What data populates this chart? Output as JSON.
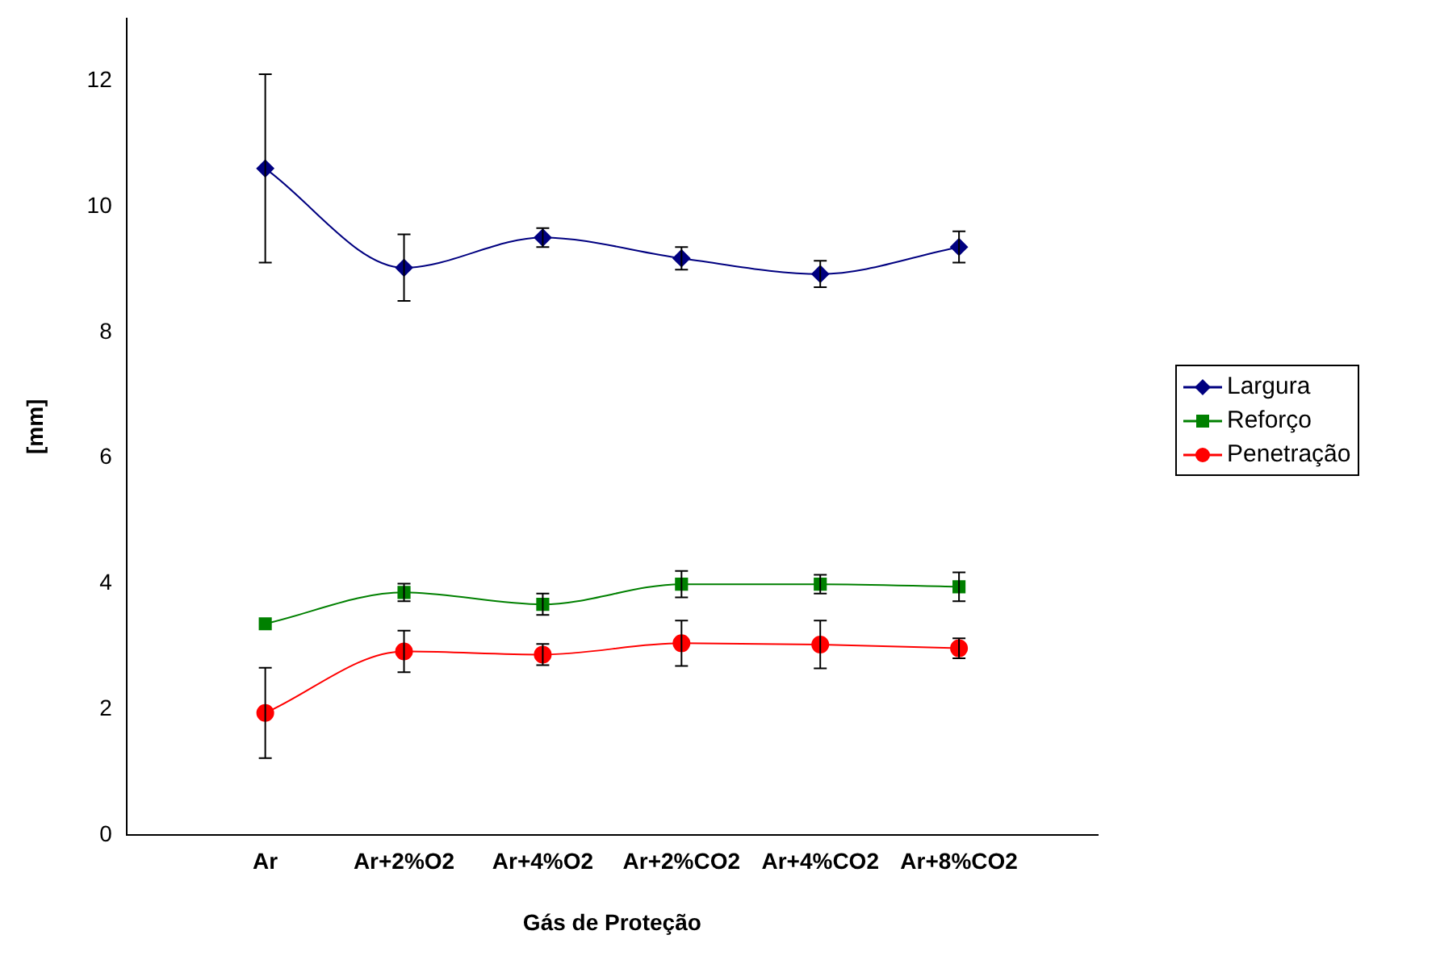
{
  "chart_data": {
    "type": "line",
    "xlabel": "Gás de Proteção",
    "ylabel": "[mm]",
    "categories": [
      null,
      "Ar",
      "Ar+2%O2",
      "Ar+4%O2",
      "Ar+2%CO2",
      "Ar+4%CO2",
      "Ar+8%CO2",
      null
    ],
    "series": [
      {
        "name": "Largura",
        "color": "#000080",
        "marker": "diamond",
        "values": [
          null,
          10.61,
          9.03,
          9.51,
          9.18,
          8.93,
          9.36,
          null
        ],
        "errors": [
          null,
          1.5,
          0.53,
          0.15,
          0.18,
          0.21,
          0.25,
          null
        ]
      },
      {
        "name": "Reforço",
        "color": "#008000",
        "marker": "square",
        "values": [
          null,
          3.36,
          3.86,
          3.67,
          3.99,
          3.99,
          3.95,
          null
        ],
        "errors": [
          null,
          null,
          0.14,
          0.17,
          0.21,
          0.15,
          0.23,
          null
        ]
      },
      {
        "name": "Penetração",
        "color": "#ff0000",
        "marker": "circle",
        "values": [
          null,
          1.94,
          2.92,
          2.87,
          3.05,
          3.03,
          2.97,
          null
        ],
        "errors": [
          null,
          0.72,
          0.33,
          0.17,
          0.36,
          0.38,
          0.16,
          null
        ]
      }
    ],
    "ylim": [
      0,
      13
    ],
    "yticks": [
      0,
      2,
      4,
      6,
      8,
      10,
      12
    ],
    "grid": false,
    "legend": "right"
  }
}
